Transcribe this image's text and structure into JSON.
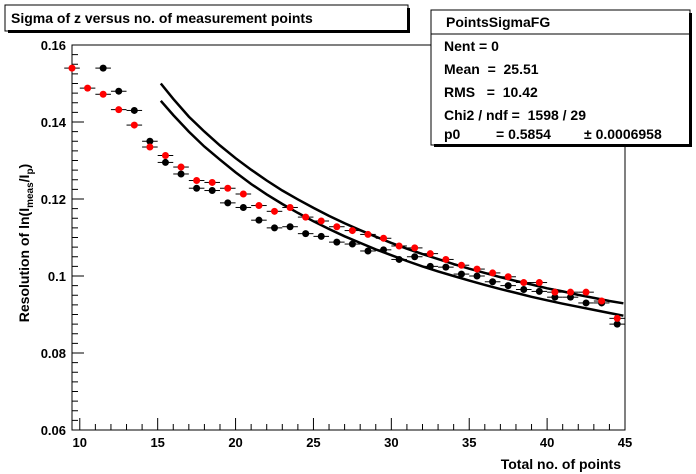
{
  "chart_data": {
    "type": "scatter",
    "title": "Sigma of z versus no. of measurement points",
    "xlabel": "Total no. of points",
    "ylabel_main": "Resolution of ln(I",
    "ylabel_sub": "meas",
    "ylabel_mid": "/I",
    "ylabel_sub2": "p",
    "ylabel_end": ")",
    "xlim": [
      9.5,
      45
    ],
    "ylim": [
      0.06,
      0.16
    ],
    "x_ticks": [
      10,
      15,
      20,
      25,
      30,
      35,
      40,
      45
    ],
    "x_tick_labels": [
      "10",
      "15",
      "20",
      "25",
      "30",
      "35",
      "40",
      "45"
    ],
    "y_ticks": [
      0.06,
      0.08,
      0.1,
      0.12,
      0.14,
      0.16
    ],
    "y_tick_labels": [
      "0.06",
      "0.08",
      "0.1",
      "0.12",
      "0.14",
      "0.16"
    ],
    "grid": false,
    "stats_box": {
      "name": "PointsSigmaFG",
      "nent": "Nent = 0",
      "mean": "Mean  =  25.51",
      "rms": "RMS   =  10.42",
      "chi2": "Chi2 / ndf =  1598 / 29",
      "p0_label": "p0",
      "p0_value": "= 0.5854",
      "p0_error": "± 0.0006958"
    },
    "series": [
      {
        "color": "#000000",
        "marker": "circle",
        "x": [
          11.5,
          12.5,
          13.5,
          14.5,
          15.5,
          16.5,
          17.5,
          18.5,
          19.5,
          20.5,
          21.5,
          22.5,
          23.5,
          24.5,
          25.5,
          26.5,
          27.5,
          28.5,
          29.5,
          30.5,
          31.5,
          32.5,
          33.5,
          34.5,
          35.5,
          36.5,
          37.5,
          38.5,
          39.5,
          40.5,
          41.5,
          42.5,
          43.5,
          44.5
        ],
        "y": [
          0.154,
          0.148,
          0.143,
          0.135,
          0.1295,
          0.1265,
          0.1228,
          0.1222,
          0.119,
          0.1178,
          0.1145,
          0.1125,
          0.1128,
          0.111,
          0.1103,
          0.1088,
          0.1083,
          0.1065,
          0.1068,
          0.1043,
          0.105,
          0.1025,
          0.1023,
          0.1005,
          0.1,
          0.0985,
          0.0975,
          0.0965,
          0.096,
          0.0945,
          0.0945,
          0.093,
          0.093,
          0.0875
        ]
      },
      {
        "color": "#ff0000",
        "marker": "circle",
        "x": [
          9.5,
          10.5,
          11.5,
          12.5,
          13.5,
          14.5,
          15.5,
          16.5,
          17.5,
          18.5,
          19.5,
          20.5,
          21.5,
          22.5,
          23.5,
          24.5,
          25.5,
          26.5,
          27.5,
          28.5,
          29.5,
          30.5,
          31.5,
          32.5,
          33.5,
          34.5,
          35.5,
          36.5,
          37.5,
          38.5,
          39.5,
          40.5,
          41.5,
          42.5,
          43.5,
          44.5
        ],
        "y": [
          0.154,
          0.1488,
          0.1472,
          0.1432,
          0.1392,
          0.1335,
          0.1313,
          0.1283,
          0.1248,
          0.1243,
          0.1228,
          0.1213,
          0.1183,
          0.1168,
          0.1178,
          0.1153,
          0.1143,
          0.1128,
          0.1118,
          0.1108,
          0.1098,
          0.1078,
          0.1073,
          0.1058,
          0.1043,
          0.1028,
          0.1018,
          0.1008,
          0.0998,
          0.0983,
          0.0983,
          0.0958,
          0.0958,
          0.0958,
          0.0935,
          0.089
        ]
      }
    ],
    "curves": [
      {
        "x": [
          15.2,
          16,
          17,
          18,
          19,
          20,
          21,
          22,
          23,
          24,
          25,
          26,
          27,
          28,
          29,
          30,
          31,
          32,
          33,
          34,
          35,
          36,
          37,
          38,
          39,
          40,
          41,
          42,
          43,
          44,
          44.9
        ],
        "y": [
          0.15,
          0.146,
          0.1414,
          0.1375,
          0.1339,
          0.1306,
          0.1276,
          0.1248,
          0.1222,
          0.1199,
          0.1177,
          0.1156,
          0.1137,
          0.1119,
          0.1102,
          0.1086,
          0.1071,
          0.1057,
          0.1044,
          0.1031,
          0.1019,
          0.1008,
          0.0997,
          0.0987,
          0.0978,
          0.0968,
          0.096,
          0.0951,
          0.0943,
          0.0935,
          0.0929
        ]
      },
      {
        "x": [
          15.2,
          16,
          17,
          18,
          19,
          20,
          21,
          22,
          23,
          24,
          25,
          26,
          27,
          28,
          29,
          30,
          31,
          32,
          33,
          34,
          35,
          36,
          37,
          38,
          39,
          40,
          41,
          42,
          43,
          44,
          44.9
        ],
        "y": [
          0.1455,
          0.1418,
          0.1375,
          0.1336,
          0.1302,
          0.1269,
          0.1239,
          0.1212,
          0.1187,
          0.1164,
          0.1142,
          0.1122,
          0.1103,
          0.1086,
          0.1069,
          0.1054,
          0.1039,
          0.1025,
          0.1012,
          0.1,
          0.0988,
          0.0977,
          0.0966,
          0.0956,
          0.0946,
          0.0937,
          0.0928,
          0.092,
          0.0912,
          0.0904,
          0.0897
        ]
      }
    ]
  }
}
